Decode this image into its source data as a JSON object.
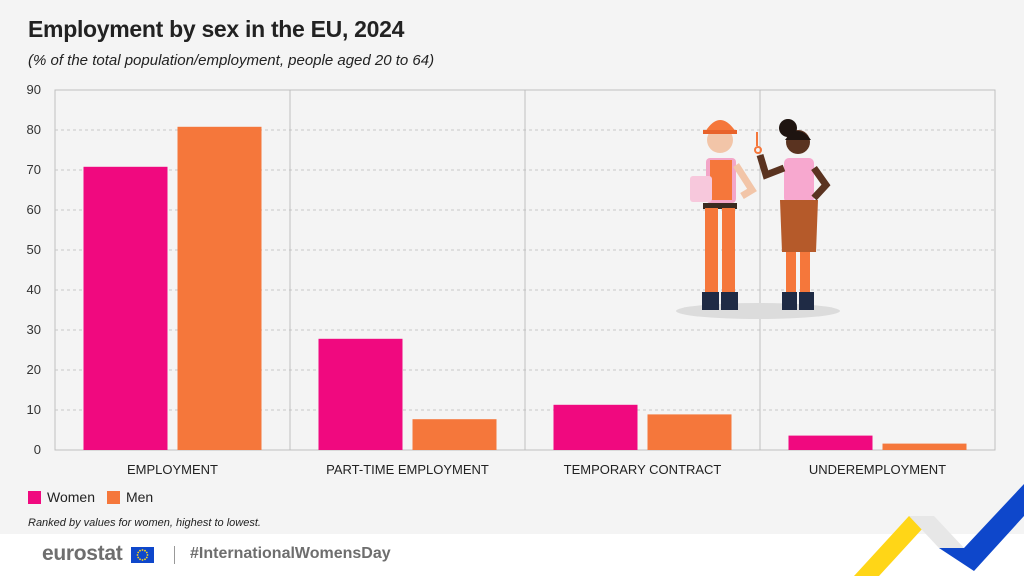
{
  "title": "Employment by sex in the EU, 2024",
  "subtitle": "(% of the total population/employment, people aged 20 to 64)",
  "note": "Ranked by values for women, highest to lowest.",
  "footer": {
    "logo": "eurostat",
    "hashtag": "#InternationalWomensDay"
  },
  "colors": {
    "women": "#f0097f",
    "men": "#f5773b",
    "background": "#f4f4f4"
  },
  "legend": [
    {
      "label": "Women",
      "color": "#f0097f"
    },
    {
      "label": "Men",
      "color": "#f5773b"
    }
  ],
  "chart_data": {
    "type": "bar",
    "categories": [
      "EMPLOYMENT",
      "PART-TIME EMPLOYMENT",
      "TEMPORARY CONTRACT",
      "UNDEREMPLOYMENT"
    ],
    "series": [
      {
        "name": "Women",
        "values": [
          70.8,
          27.8,
          11.3,
          3.6
        ]
      },
      {
        "name": "Men",
        "values": [
          80.8,
          7.7,
          8.9,
          1.6
        ]
      }
    ],
    "yticks": [
      0,
      10,
      20,
      30,
      40,
      50,
      60,
      70,
      80,
      90
    ],
    "ylim": [
      0,
      90
    ],
    "grid": true,
    "legend_position": "bottom-left"
  }
}
